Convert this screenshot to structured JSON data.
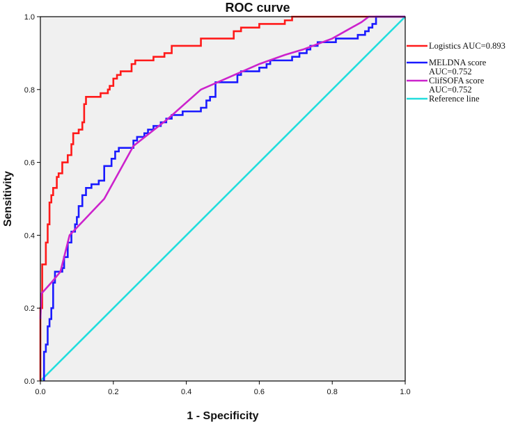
{
  "chart_data": {
    "type": "line",
    "title": "ROC curve",
    "xlabel": "1 - Specificity",
    "ylabel": "Sensitivity",
    "xlim": [
      0,
      1
    ],
    "ylim": [
      0,
      1
    ],
    "x_ticks": [
      "0.0",
      "0.2",
      "0.4",
      "0.6",
      "0.8",
      "1.0"
    ],
    "y_ticks": [
      "0.0",
      "0.2",
      "0.4",
      "0.6",
      "0.8",
      "1.0"
    ],
    "legend_position": "right",
    "series": [
      {
        "name": "Logistics",
        "legend_lines": [
          "Logistics  AUC=0.893"
        ],
        "auc": 0.893,
        "color": "#ff1a1a",
        "step": true,
        "points": [
          [
            0,
            0
          ],
          [
            0,
            0.2
          ],
          [
            0.005,
            0.2
          ],
          [
            0.005,
            0.32
          ],
          [
            0.015,
            0.32
          ],
          [
            0.015,
            0.38
          ],
          [
            0.02,
            0.38
          ],
          [
            0.02,
            0.43
          ],
          [
            0.025,
            0.43
          ],
          [
            0.025,
            0.49
          ],
          [
            0.03,
            0.49
          ],
          [
            0.03,
            0.51
          ],
          [
            0.035,
            0.51
          ],
          [
            0.035,
            0.53
          ],
          [
            0.045,
            0.53
          ],
          [
            0.045,
            0.56
          ],
          [
            0.05,
            0.56
          ],
          [
            0.05,
            0.57
          ],
          [
            0.06,
            0.57
          ],
          [
            0.06,
            0.6
          ],
          [
            0.075,
            0.6
          ],
          [
            0.075,
            0.62
          ],
          [
            0.085,
            0.62
          ],
          [
            0.085,
            0.65
          ],
          [
            0.09,
            0.65
          ],
          [
            0.09,
            0.68
          ],
          [
            0.105,
            0.68
          ],
          [
            0.105,
            0.69
          ],
          [
            0.115,
            0.69
          ],
          [
            0.115,
            0.71
          ],
          [
            0.12,
            0.71
          ],
          [
            0.12,
            0.76
          ],
          [
            0.125,
            0.76
          ],
          [
            0.125,
            0.78
          ],
          [
            0.165,
            0.78
          ],
          [
            0.165,
            0.79
          ],
          [
            0.185,
            0.79
          ],
          [
            0.185,
            0.8
          ],
          [
            0.19,
            0.8
          ],
          [
            0.19,
            0.81
          ],
          [
            0.2,
            0.81
          ],
          [
            0.2,
            0.83
          ],
          [
            0.21,
            0.83
          ],
          [
            0.21,
            0.84
          ],
          [
            0.22,
            0.84
          ],
          [
            0.22,
            0.85
          ],
          [
            0.25,
            0.85
          ],
          [
            0.25,
            0.87
          ],
          [
            0.26,
            0.87
          ],
          [
            0.26,
            0.88
          ],
          [
            0.31,
            0.88
          ],
          [
            0.31,
            0.89
          ],
          [
            0.34,
            0.89
          ],
          [
            0.34,
            0.9
          ],
          [
            0.36,
            0.9
          ],
          [
            0.36,
            0.92
          ],
          [
            0.44,
            0.92
          ],
          [
            0.44,
            0.94
          ],
          [
            0.53,
            0.94
          ],
          [
            0.53,
            0.96
          ],
          [
            0.55,
            0.96
          ],
          [
            0.55,
            0.97
          ],
          [
            0.6,
            0.97
          ],
          [
            0.6,
            0.98
          ],
          [
            0.67,
            0.98
          ],
          [
            0.67,
            0.99
          ],
          [
            0.69,
            0.99
          ],
          [
            0.69,
            1.0
          ],
          [
            1.0,
            1.0
          ]
        ]
      },
      {
        "name": "MELDNA score",
        "legend_lines": [
          "MELDNA score",
          "AUC=0.752"
        ],
        "auc": 0.752,
        "color": "#1a1aff",
        "step": true,
        "points": [
          [
            0.01,
            0
          ],
          [
            0.01,
            0.08
          ],
          [
            0.015,
            0.08
          ],
          [
            0.015,
            0.1
          ],
          [
            0.02,
            0.1
          ],
          [
            0.02,
            0.15
          ],
          [
            0.025,
            0.15
          ],
          [
            0.025,
            0.17
          ],
          [
            0.03,
            0.17
          ],
          [
            0.03,
            0.2
          ],
          [
            0.035,
            0.2
          ],
          [
            0.035,
            0.27
          ],
          [
            0.04,
            0.27
          ],
          [
            0.04,
            0.3
          ],
          [
            0.06,
            0.3
          ],
          [
            0.06,
            0.31
          ],
          [
            0.065,
            0.31
          ],
          [
            0.065,
            0.34
          ],
          [
            0.075,
            0.34
          ],
          [
            0.075,
            0.38
          ],
          [
            0.085,
            0.38
          ],
          [
            0.085,
            0.41
          ],
          [
            0.095,
            0.41
          ],
          [
            0.095,
            0.43
          ],
          [
            0.1,
            0.43
          ],
          [
            0.1,
            0.45
          ],
          [
            0.105,
            0.45
          ],
          [
            0.105,
            0.48
          ],
          [
            0.115,
            0.48
          ],
          [
            0.115,
            0.51
          ],
          [
            0.125,
            0.51
          ],
          [
            0.125,
            0.53
          ],
          [
            0.14,
            0.53
          ],
          [
            0.14,
            0.54
          ],
          [
            0.16,
            0.54
          ],
          [
            0.16,
            0.55
          ],
          [
            0.175,
            0.55
          ],
          [
            0.175,
            0.59
          ],
          [
            0.195,
            0.59
          ],
          [
            0.195,
            0.61
          ],
          [
            0.205,
            0.61
          ],
          [
            0.205,
            0.63
          ],
          [
            0.215,
            0.63
          ],
          [
            0.215,
            0.64
          ],
          [
            0.255,
            0.64
          ],
          [
            0.255,
            0.66
          ],
          [
            0.265,
            0.66
          ],
          [
            0.265,
            0.67
          ],
          [
            0.285,
            0.67
          ],
          [
            0.285,
            0.68
          ],
          [
            0.295,
            0.68
          ],
          [
            0.295,
            0.69
          ],
          [
            0.31,
            0.69
          ],
          [
            0.31,
            0.7
          ],
          [
            0.33,
            0.7
          ],
          [
            0.33,
            0.71
          ],
          [
            0.345,
            0.71
          ],
          [
            0.345,
            0.72
          ],
          [
            0.36,
            0.72
          ],
          [
            0.36,
            0.73
          ],
          [
            0.39,
            0.73
          ],
          [
            0.39,
            0.74
          ],
          [
            0.44,
            0.74
          ],
          [
            0.44,
            0.75
          ],
          [
            0.455,
            0.75
          ],
          [
            0.455,
            0.77
          ],
          [
            0.465,
            0.77
          ],
          [
            0.465,
            0.78
          ],
          [
            0.48,
            0.78
          ],
          [
            0.48,
            0.82
          ],
          [
            0.54,
            0.82
          ],
          [
            0.54,
            0.84
          ],
          [
            0.55,
            0.84
          ],
          [
            0.55,
            0.85
          ],
          [
            0.6,
            0.85
          ],
          [
            0.6,
            0.86
          ],
          [
            0.62,
            0.86
          ],
          [
            0.62,
            0.87
          ],
          [
            0.63,
            0.87
          ],
          [
            0.63,
            0.88
          ],
          [
            0.69,
            0.88
          ],
          [
            0.69,
            0.89
          ],
          [
            0.71,
            0.89
          ],
          [
            0.71,
            0.9
          ],
          [
            0.73,
            0.9
          ],
          [
            0.73,
            0.91
          ],
          [
            0.74,
            0.91
          ],
          [
            0.74,
            0.92
          ],
          [
            0.76,
            0.92
          ],
          [
            0.76,
            0.93
          ],
          [
            0.81,
            0.93
          ],
          [
            0.81,
            0.94
          ],
          [
            0.87,
            0.94
          ],
          [
            0.87,
            0.95
          ],
          [
            0.89,
            0.95
          ],
          [
            0.89,
            0.96
          ],
          [
            0.9,
            0.96
          ],
          [
            0.9,
            0.97
          ],
          [
            0.91,
            0.97
          ],
          [
            0.91,
            0.98
          ],
          [
            0.92,
            0.98
          ],
          [
            0.92,
            1.0
          ],
          [
            1.0,
            1.0
          ]
        ]
      },
      {
        "name": "ClifSOFA score",
        "legend_lines": [
          "ClifSOFA score",
          "AUC=0.752"
        ],
        "auc": 0.752,
        "color": "#cc22cc",
        "step": false,
        "points": [
          [
            0,
            0.17
          ],
          [
            0.003,
            0.24
          ],
          [
            0.03,
            0.27
          ],
          [
            0.055,
            0.3
          ],
          [
            0.08,
            0.4
          ],
          [
            0.175,
            0.5
          ],
          [
            0.255,
            0.645
          ],
          [
            0.35,
            0.72
          ],
          [
            0.44,
            0.8
          ],
          [
            0.6,
            0.87
          ],
          [
            0.67,
            0.895
          ],
          [
            0.72,
            0.91
          ],
          [
            0.8,
            0.94
          ],
          [
            0.88,
            0.985
          ],
          [
            0.9,
            1.0
          ],
          [
            1.0,
            1.0
          ]
        ]
      },
      {
        "name": "Reference line",
        "legend_lines": [
          "Reference line"
        ],
        "color": "#22dddd",
        "step": false,
        "points": [
          [
            0,
            0
          ],
          [
            1,
            1
          ]
        ]
      }
    ]
  }
}
